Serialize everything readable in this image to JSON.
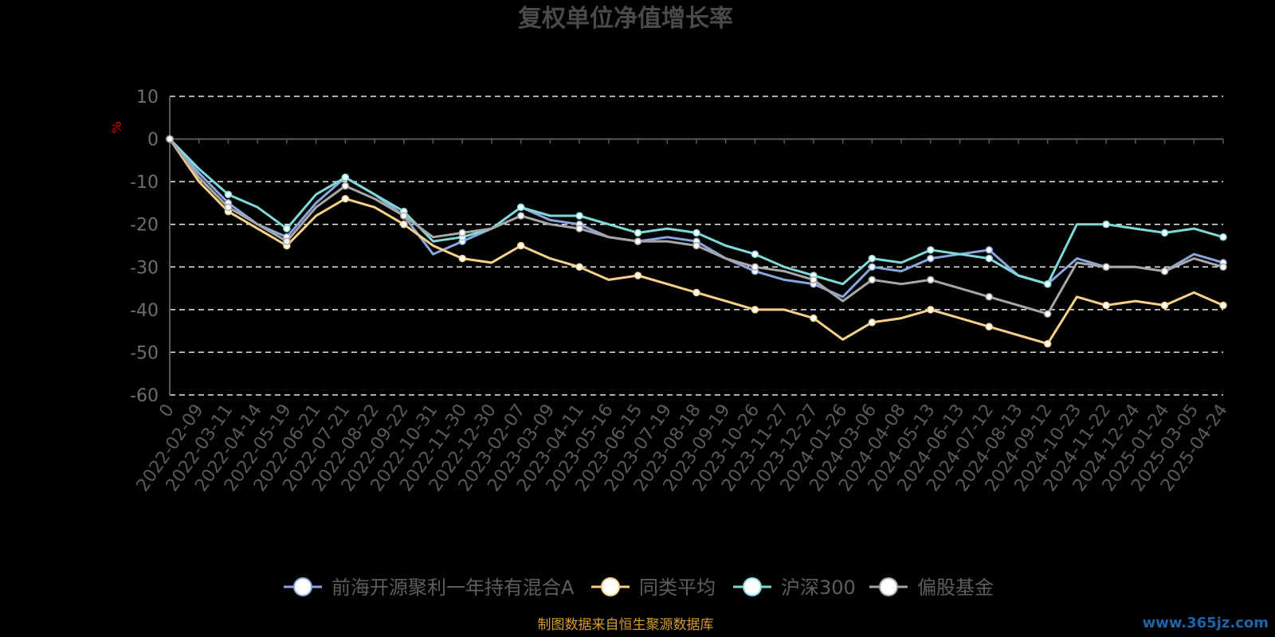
{
  "chart_data": {
    "type": "line",
    "title": "复权单位净值增长率",
    "ylabel": "%",
    "ylim": [
      -60,
      10
    ],
    "yticks": [
      10,
      0,
      -10,
      -20,
      -30,
      -40,
      -50,
      -60
    ],
    "grid": true,
    "legend_position": "bottom",
    "x": [
      "0",
      "2022-02-09",
      "2022-03-11",
      "2022-04-14",
      "2022-05-19",
      "2022-06-21",
      "2022-07-21",
      "2022-08-22",
      "2022-09-22",
      "2022-10-31",
      "2022-11-30",
      "2022-12-30",
      "2023-02-07",
      "2023-03-09",
      "2023-04-11",
      "2023-05-16",
      "2023-06-15",
      "2023-07-19",
      "2023-08-18",
      "2023-09-19",
      "2023-10-26",
      "2023-11-27",
      "2023-12-27",
      "2024-01-26",
      "2024-03-06",
      "2024-04-08",
      "2024-05-13",
      "2024-06-13",
      "2024-07-12",
      "2024-08-13",
      "2024-09-12",
      "2024-10-23",
      "2024-11-22",
      "2024-12-24",
      "2025-01-24",
      "2025-03-05",
      "2025-04-24"
    ],
    "series": [
      {
        "name": "前海开源聚利一年持有混合A",
        "color": "#8aa6dc",
        "values": [
          0,
          -8,
          -15,
          -20,
          -23,
          -15,
          -9,
          -13,
          -18,
          -27,
          -24,
          -21,
          -16,
          -19,
          -20,
          -23,
          -24,
          -23,
          -24,
          -28,
          -31,
          -33,
          -34,
          -37,
          -30,
          -31,
          -28,
          -27,
          -26,
          -32,
          -34,
          -28,
          -30,
          -30,
          -31,
          -27,
          -29
        ]
      },
      {
        "name": "同类平均",
        "color": "#f7d08a",
        "values": [
          0,
          -10,
          -17,
          -21,
          -25,
          -18,
          -14,
          -16,
          -20,
          -25,
          -28,
          -29,
          -25,
          -28,
          -30,
          -33,
          -32,
          -34,
          -36,
          -38,
          -40,
          -40,
          -42,
          -47,
          -43,
          -42,
          -40,
          -42,
          -44,
          -46,
          -48,
          -37,
          -39,
          -38,
          -39,
          -36,
          -39
        ]
      },
      {
        "name": "沪深300",
        "color": "#7fd9d9",
        "values": [
          0,
          -7,
          -13,
          -16,
          -21,
          -13,
          -9,
          -13,
          -17,
          -24,
          -23,
          -21,
          -16,
          -18,
          -18,
          -20,
          -22,
          -21,
          -22,
          -25,
          -27,
          -30,
          -32,
          -34,
          -28,
          -29,
          -26,
          -27,
          -28,
          -32,
          -34,
          -20,
          -20,
          -21,
          -22,
          -21,
          -23
        ]
      },
      {
        "name": "偏股基金",
        "color": "#a7a7a7",
        "values": [
          0,
          -9,
          -16,
          -20,
          -24,
          -16,
          -11,
          -14,
          -18,
          -23,
          -22,
          -21,
          -18,
          -20,
          -21,
          -23,
          -24,
          -24,
          -25,
          -28,
          -30,
          -31,
          -33,
          -38,
          -33,
          -34,
          -33,
          -35,
          -37,
          -39,
          -41,
          -29,
          -30,
          -30,
          -31,
          -28,
          -30
        ]
      }
    ],
    "source": "制图数据来自恒生聚源数据库",
    "watermark": "www.365jz.com"
  }
}
